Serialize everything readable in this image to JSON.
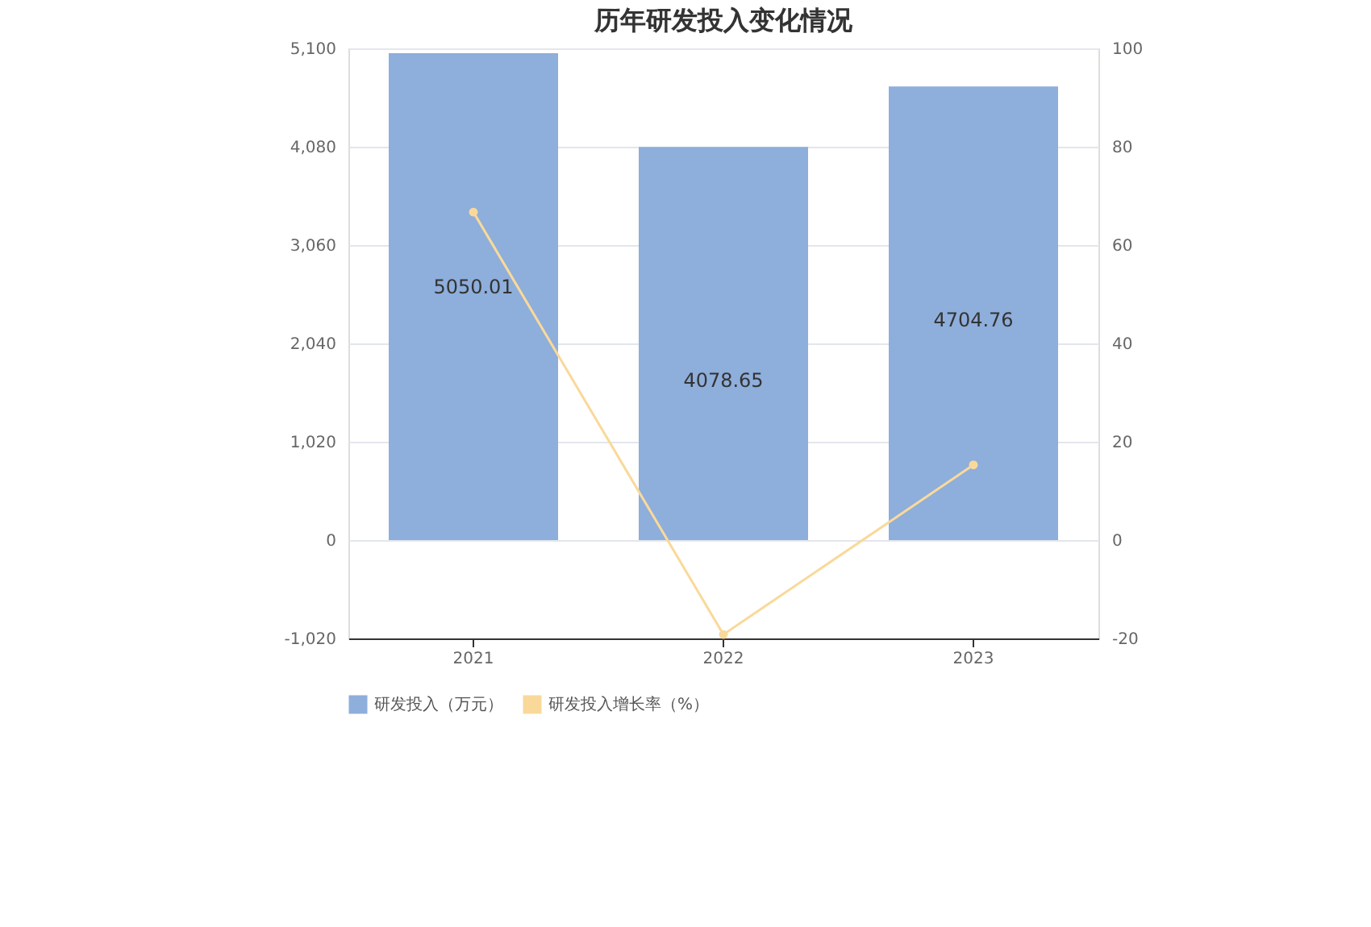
{
  "chart_data": {
    "type": "bar",
    "title": "历年研发投入变化情况",
    "categories": [
      "2021",
      "2022",
      "2023"
    ],
    "series": [
      {
        "name": "研发投入（万元）",
        "color": "#8eaedb",
        "values": [
          5050.01,
          4078.65,
          4704.76
        ],
        "value_labels": [
          "5050.01",
          "4078.65",
          "4704.76"
        ]
      },
      {
        "name": "研发投入增长率（%）",
        "type": "line",
        "axis": "y2",
        "color": "#f9d99a",
        "values": [
          66.7,
          -19.2,
          15.3
        ]
      }
    ],
    "ylim": [
      -1020,
      5100
    ],
    "yticks": [
      {
        "value": -1020,
        "label": "-1,020"
      },
      0,
      {
        "value": 1020,
        "label": "1,020"
      },
      {
        "value": 2040,
        "label": "2,040"
      },
      {
        "value": 3060,
        "label": "3,060"
      },
      {
        "value": 4080,
        "label": "4,080"
      },
      {
        "value": 5100,
        "label": "5,100"
      }
    ],
    "y2lim": [
      -20,
      100
    ],
    "y2ticks": [
      -20,
      0,
      20,
      40,
      60,
      80,
      100
    ],
    "grid": "y",
    "legend": "bottom",
    "marker": "circle",
    "line_style": "solid"
  }
}
